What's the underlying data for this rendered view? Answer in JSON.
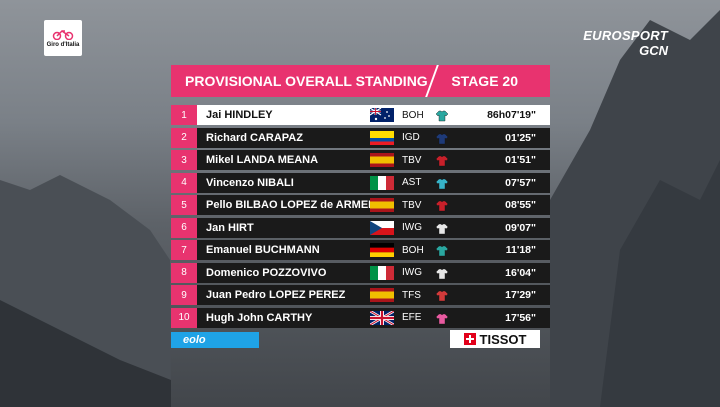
{
  "header": {
    "title": "PROVISIONAL OVERALL STANDING",
    "stage": "STAGE 20"
  },
  "race_logo": {
    "text": "Giro d'Italia"
  },
  "broadcaster": {
    "line1": "EUROSPORT",
    "line2": "GCN"
  },
  "sponsor": {
    "left": "eolo",
    "right": "TISSOT"
  },
  "colors": {
    "accent": "#e8336f",
    "row_dark": "#1a1a1a",
    "leader_row": "#ffffff",
    "eolo_blue": "#1fa3e6"
  },
  "standings": [
    {
      "pos": "1",
      "name": "Jai HINDLEY",
      "country": "AUS",
      "team": "BOH",
      "time": "86h07'19\"",
      "jersey": "#2aa7a0"
    },
    {
      "pos": "2",
      "name": "Richard CARAPAZ",
      "country": "ECU",
      "team": "IGD",
      "time": "01'25\"",
      "jersey": "#1e3a78"
    },
    {
      "pos": "3",
      "name": "Mikel LANDA MEANA",
      "country": "ESP",
      "team": "TBV",
      "time": "01'51\"",
      "jersey": "#c8202a"
    },
    {
      "pos": "4",
      "name": "Vincenzo NIBALI",
      "country": "ITA",
      "team": "AST",
      "time": "07'57\"",
      "jersey": "#37b3c8"
    },
    {
      "pos": "5",
      "name": "Pello BILBAO LOPEZ de ARMENTIA",
      "country": "ESP",
      "team": "TBV",
      "time": "08'55\"",
      "jersey": "#c8202a"
    },
    {
      "pos": "6",
      "name": "Jan HIRT",
      "country": "CZE",
      "team": "IWG",
      "time": "09'07\"",
      "jersey": "#e6e6e6"
    },
    {
      "pos": "7",
      "name": "Emanuel BUCHMANN",
      "country": "GER",
      "team": "BOH",
      "time": "11'18\"",
      "jersey": "#2aa7a0"
    },
    {
      "pos": "8",
      "name": "Domenico POZZOVIVO",
      "country": "ITA",
      "team": "IWG",
      "time": "16'04\"",
      "jersey": "#e6e6e6"
    },
    {
      "pos": "9",
      "name": "Juan Pedro LOPEZ PEREZ",
      "country": "ESP",
      "team": "TFS",
      "time": "17'29\"",
      "jersey": "#d23a3a"
    },
    {
      "pos": "10",
      "name": "Hugh John CARTHY",
      "country": "GBR",
      "team": "EFE",
      "time": "17'56\"",
      "jersey": "#e85aa0"
    }
  ]
}
